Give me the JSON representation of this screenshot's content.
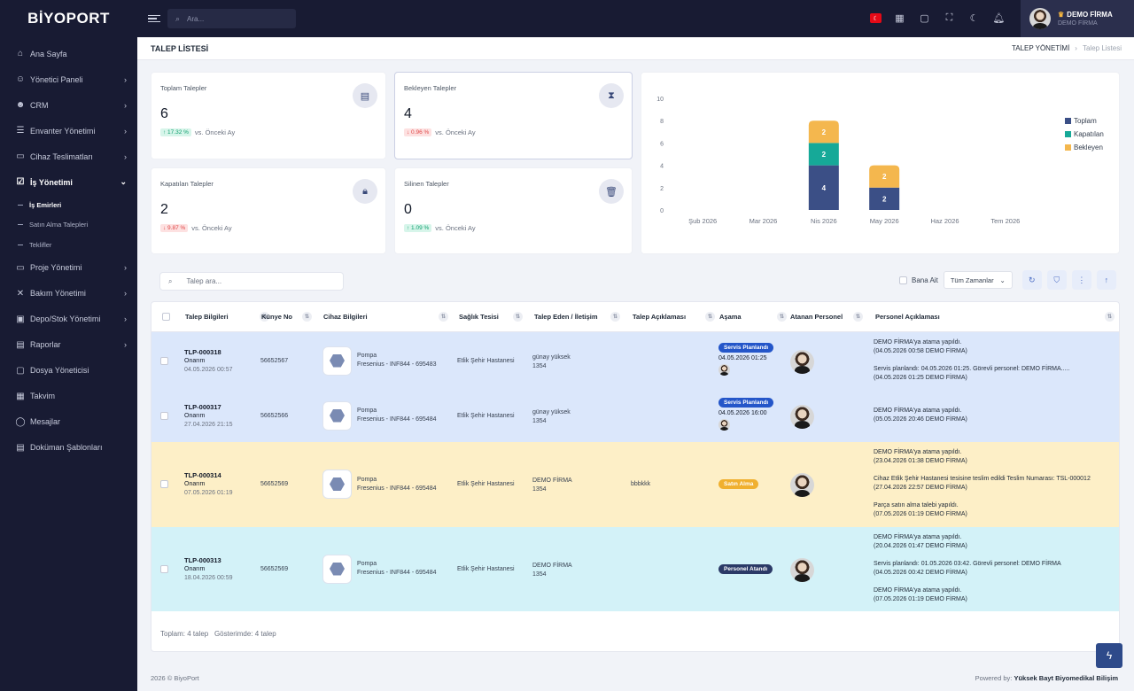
{
  "brand": "BİYOPORT",
  "sidebar": {
    "items": [
      {
        "label": "Ana Sayfa",
        "icon": "home-icon",
        "chevron": false
      },
      {
        "label": "Yönetici Paneli",
        "icon": "user-icon",
        "chevron": true
      },
      {
        "label": "CRM",
        "icon": "users-icon",
        "chevron": true
      },
      {
        "label": "Envanter Yönetimi",
        "icon": "database-icon",
        "chevron": true
      },
      {
        "label": "Cihaz Teslimatları",
        "icon": "truck-icon",
        "chevron": true
      },
      {
        "label": "İş Yönetimi",
        "icon": "checkbox-icon",
        "chevron": true,
        "open": true
      },
      {
        "label": "Proje Yönetimi",
        "icon": "folder-icon",
        "chevron": true
      },
      {
        "label": "Bakım Yönetimi",
        "icon": "tools-icon",
        "chevron": true
      },
      {
        "label": "Depo/Stok Yönetimi",
        "icon": "box-icon",
        "chevron": true
      },
      {
        "label": "Raporlar",
        "icon": "report-icon",
        "chevron": true
      },
      {
        "label": "Dosya Yöneticisi",
        "icon": "file-icon",
        "chevron": false
      },
      {
        "label": "Takvim",
        "icon": "calendar-icon",
        "chevron": false
      },
      {
        "label": "Mesajlar",
        "icon": "chat-icon",
        "chevron": false
      },
      {
        "label": "Doküman Şablonları",
        "icon": "document-icon",
        "chevron": false
      }
    ],
    "subitems": [
      "İş Emirleri",
      "Satın Alma Talepleri",
      "Teklifler"
    ]
  },
  "topbar": {
    "search_placeholder": "Ara...",
    "user_name": "DEMO FİRMA",
    "user_role": "DEMO FİRMA"
  },
  "header": {
    "title": "TALEP LİSTESİ",
    "crumb_parent": "TALEP YÖNETİMİ",
    "crumb_current": "Talep Listesi"
  },
  "stats": [
    {
      "label": "Toplam Talepler",
      "value": "6",
      "delta": "↑ 17.32 %",
      "dir": "up",
      "note": "vs. Önceki Ay",
      "icon": "ticket-icon"
    },
    {
      "label": "Bekleyen Talepler",
      "value": "4",
      "delta": "↓ 0.96 %",
      "dir": "down",
      "note": "vs. Önceki Ay",
      "icon": "hourglass-icon"
    },
    {
      "label": "Kapatılan Talepler",
      "value": "2",
      "delta": "↓ 9.87 %",
      "dir": "down",
      "note": "vs. Önceki Ay",
      "icon": "lock-icon"
    },
    {
      "label": "Silinen Talepler",
      "value": "0",
      "delta": "↑ 1.09 %",
      "dir": "up",
      "note": "vs. Önceki Ay",
      "icon": "trash-icon"
    }
  ],
  "chart_data": {
    "type": "bar",
    "stacked": true,
    "categories": [
      "Şub 2026",
      "Mar 2026",
      "Nis 2026",
      "May 2026",
      "Haz 2026",
      "Tem 2026"
    ],
    "series": [
      {
        "name": "Toplam",
        "color": "#3b4f86",
        "values": [
          0,
          0,
          4,
          2,
          0,
          0
        ]
      },
      {
        "name": "Kapatılan",
        "color": "#16a998",
        "values": [
          0,
          0,
          2,
          0,
          0,
          0
        ]
      },
      {
        "name": "Bekleyen",
        "color": "#f4b74e",
        "values": [
          0,
          0,
          2,
          2,
          0,
          0
        ]
      }
    ],
    "ylim": [
      0,
      10
    ],
    "yticks": [
      0,
      2,
      4,
      6,
      8,
      10
    ],
    "legend": "right",
    "grid": false
  },
  "table": {
    "search_placeholder": "Talep ara...",
    "filter_label": "Bana Ait",
    "time_select": "Tüm Zamanlar",
    "columns": [
      "Talep Bilgileri",
      "Künye No",
      "Cihaz Bilgileri",
      "Sağlık Tesisi",
      "Talep Eden / İletişim",
      "Talep Açıklaması",
      "Aşama",
      "Atanan Personel",
      "Personel Açıklaması"
    ],
    "rows": [
      {
        "id": "TLP-000318",
        "type": "Onarım",
        "date": "04.05.2026 00:57",
        "kunye": "56652567",
        "device": "Pompa",
        "model": "Fresenius - INF844 - 695483",
        "facility": "Etlik Şehir Hastanesi",
        "requester": "günay yüksek",
        "phone": "1354",
        "desc": "",
        "stage": "Servis Planlandı",
        "stage_color": "#2456c9",
        "stage_date": "04.05.2026 01:25",
        "bg": "#dbe7fb",
        "notes": [
          "DEMO FİRMA'ya atama yapıldı.",
          "(04.05.2026 00:58 DEMO FİRMA)",
          "",
          "Servis planlandı: 04.05.2026 01:25. Görevli personel: DEMO FİRMA.....",
          "(04.05.2026 01:25 DEMO FİRMA)"
        ]
      },
      {
        "id": "TLP-000317",
        "type": "Onarım",
        "date": "27.04.2026 21:15",
        "kunye": "56652566",
        "device": "Pompa",
        "model": "Fresenius - INF844 - 695484",
        "facility": "Etlik Şehir Hastanesi",
        "requester": "günay yüksek",
        "phone": "1354",
        "desc": "",
        "stage": "Servis Planlandı",
        "stage_color": "#2456c9",
        "stage_date": "04.05.2026 16:00",
        "bg": "#dbe7fb",
        "notes": [
          "DEMO FİRMA'ya atama yapıldı.",
          "(05.05.2026 20:46 DEMO FİRMA)"
        ]
      },
      {
        "id": "TLP-000314",
        "type": "Onarım",
        "date": "07.05.2026 01:19",
        "kunye": "56652569",
        "device": "Pompa",
        "model": "Fresenius - INF844 - 695484",
        "facility": "Etlik Şehir Hastanesi",
        "requester": "DEMO FİRMA",
        "phone": "1354",
        "desc": "bbbkkk",
        "stage": "Satın Alma",
        "stage_color": "#f0b030",
        "stage_date": "",
        "bg": "#fdefc7",
        "notes": [
          "DEMO FİRMA'ya atama yapıldı.",
          "(23.04.2026 01:38 DEMO FİRMA)",
          "",
          "Cihaz Etlik Şehir Hastanesi tesisine teslim edildi Teslim Numarası: TSL-000012",
          "(27.04.2026 22:57 DEMO FİRMA)",
          "",
          "Parça satın alma talebi yapıldı.",
          "(07.05.2026 01:19 DEMO FİRMA)"
        ]
      },
      {
        "id": "TLP-000313",
        "type": "Onarım",
        "date": "18.04.2026 00:59",
        "kunye": "56652569",
        "device": "Pompa",
        "model": "Fresenius - INF844 - 695484",
        "facility": "Etlik Şehir Hastanesi",
        "requester": "DEMO FİRMA",
        "phone": "1354",
        "desc": "",
        "stage": "Personel Atandı",
        "stage_color": "#2b3a67",
        "stage_date": "",
        "bg": "#d3f2f8",
        "notes": [
          "DEMO FİRMA'ya atama yapıldı.",
          "(20.04.2026 01:47 DEMO FİRMA)",
          "",
          "Servis planlandı: 01.05.2026 03:42. Görevli personel: DEMO FİRMA",
          "(04.05.2026 00:42 DEMO FİRMA)",
          "",
          "DEMO FİRMA'ya atama yapıldı.",
          "(07.05.2026 01:19 DEMO FİRMA)"
        ]
      }
    ],
    "footer_total": "Toplam: 4 talep",
    "footer_shown": "Gösterimde: 4 talep"
  },
  "footer": {
    "left": "2026 © BiyoPort",
    "right_prefix": "Powered by:",
    "right_brand": "Yüksek Bayt Biyomedikal Bilişim"
  }
}
